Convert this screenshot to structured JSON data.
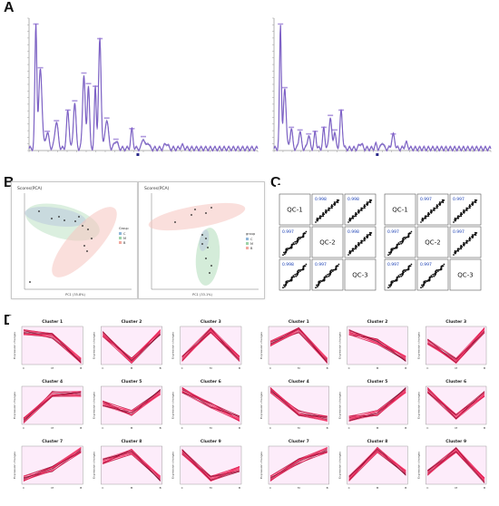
{
  "panels": {
    "A": "A",
    "B": "B",
    "C": "C",
    "D": "D"
  },
  "pca": {
    "left_title": "Scores(PCA)",
    "right_title": "Scores(PCA)",
    "left_legend": {
      "title": "Group",
      "items": [
        "C",
        "M",
        "B"
      ]
    },
    "right_legend": {
      "title": "group",
      "items": [
        "C",
        "M",
        "B"
      ]
    }
  },
  "qc": {
    "labels": [
      "QC-1",
      "QC-2",
      "QC-3"
    ],
    "left_values": [
      "0.998",
      "0.998",
      "0.997",
      "0.998",
      "0.998",
      "0.997"
    ],
    "right_values": [
      "0.997",
      "0.997",
      "0.997",
      "0.997",
      "0.997",
      "0.997"
    ]
  },
  "clusters": {
    "ylabel": "Expression changes",
    "xticks": [
      "C",
      "M",
      "B"
    ],
    "left": [
      {
        "title": "Cluster 1",
        "shape": [
          0.85,
          0.75,
          0.1
        ]
      },
      {
        "title": "Cluster 2",
        "shape": [
          0.8,
          0.1,
          0.85
        ]
      },
      {
        "title": "Cluster 3",
        "shape": [
          0.15,
          0.9,
          0.15
        ]
      },
      {
        "title": "Cluster 4",
        "shape": [
          0.1,
          0.8,
          0.8
        ]
      },
      {
        "title": "Cluster 5",
        "shape": [
          0.55,
          0.3,
          0.85
        ]
      },
      {
        "title": "Cluster 6",
        "shape": [
          0.9,
          0.5,
          0.15
        ]
      },
      {
        "title": "Cluster 7",
        "shape": [
          0.15,
          0.4,
          0.9
        ]
      },
      {
        "title": "Cluster 8",
        "shape": [
          0.6,
          0.85,
          0.15
        ]
      },
      {
        "title": "Cluster 9",
        "shape": [
          0.85,
          0.15,
          0.4
        ]
      }
    ],
    "right": [
      {
        "title": "Cluster 1",
        "shape": [
          0.55,
          0.9,
          0.1
        ]
      },
      {
        "title": "Cluster 2",
        "shape": [
          0.85,
          0.6,
          0.15
        ]
      },
      {
        "title": "Cluster 3",
        "shape": [
          0.6,
          0.1,
          0.9
        ]
      },
      {
        "title": "Cluster 4",
        "shape": [
          0.9,
          0.3,
          0.15
        ]
      },
      {
        "title": "Cluster 5",
        "shape": [
          0.15,
          0.3,
          0.9
        ]
      },
      {
        "title": "Cluster 6",
        "shape": [
          0.9,
          0.2,
          0.8
        ]
      },
      {
        "title": "Cluster 7",
        "shape": [
          0.15,
          0.6,
          0.9
        ]
      },
      {
        "title": "Cluster 8",
        "shape": [
          0.15,
          0.9,
          0.3
        ]
      },
      {
        "title": "Cluster 9",
        "shape": [
          0.3,
          0.9,
          0.1
        ]
      }
    ]
  },
  "colors": {
    "chrom_line": "#7a55c8",
    "chrom_line2": "#3a2a9a",
    "cluster_line": "#e0154b",
    "cluster_bg": "#f8c8f0",
    "pca_green": "#b8e0c0",
    "pca_pink": "#f6c5c0",
    "corr_text": "#1a3fb5"
  }
}
